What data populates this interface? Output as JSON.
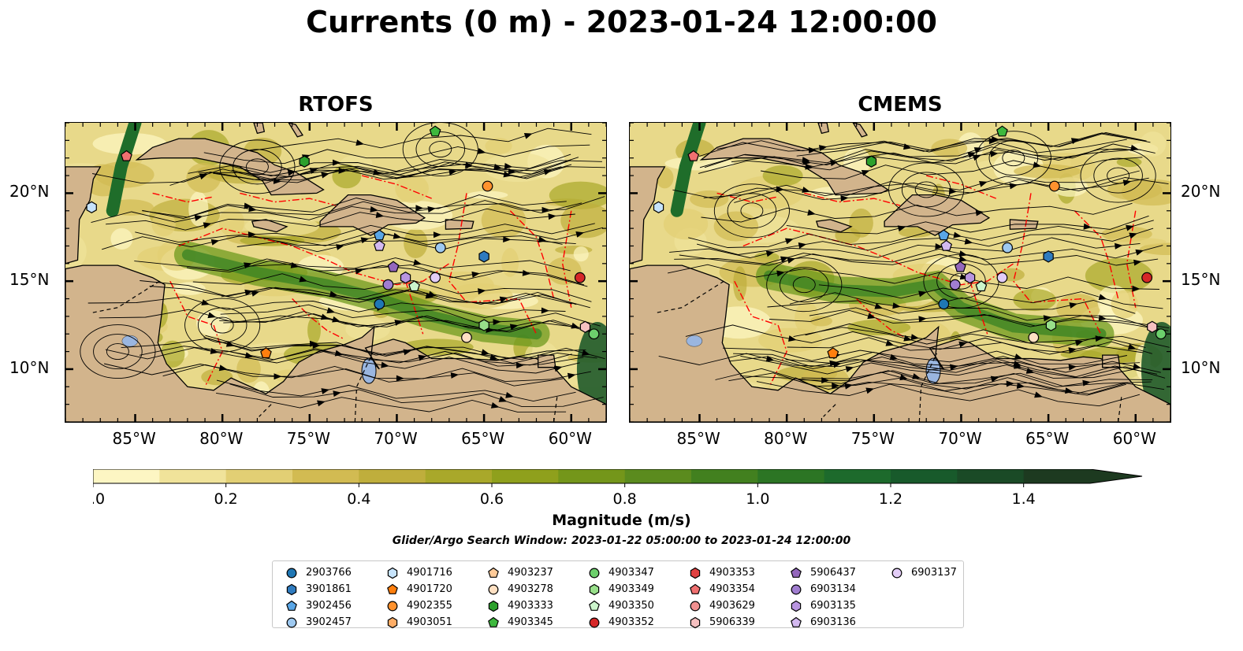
{
  "title": "Currents (0 m) - 2023-01-24 12:00:00",
  "panels": [
    {
      "id": "rtofs",
      "title": "RTOFS"
    },
    {
      "id": "cmems",
      "title": "CMEMS"
    }
  ],
  "map_extent": {
    "lon_min": -89,
    "lon_max": -58,
    "lat_min": 7,
    "lat_max": 24
  },
  "x_ticks": [
    "85°W",
    "80°W",
    "75°W",
    "70°W",
    "65°W",
    "60°W"
  ],
  "x_tick_values": [
    -85,
    -80,
    -75,
    -70,
    -65,
    -60
  ],
  "y_ticks": [
    "20°N",
    "15°N",
    "10°N"
  ],
  "y_tick_values": [
    20,
    15,
    10
  ],
  "colorbar": {
    "label": "Magnitude (m/s)",
    "min": 0.0,
    "max": 1.5,
    "extend": "max",
    "ticks": [
      "0.0",
      "0.2",
      "0.4",
      "0.6",
      "0.8",
      "1.0",
      "1.2",
      "1.4"
    ],
    "tick_values": [
      0.0,
      0.2,
      0.4,
      0.6,
      0.8,
      1.0,
      1.2,
      1.4
    ],
    "colors": [
      "#fdf6c3",
      "#f0e39a",
      "#e2cf74",
      "#d2bb52",
      "#bfae3c",
      "#a9a82a",
      "#8fa01c",
      "#74961a",
      "#5b8b1e",
      "#42801f",
      "#2c7524",
      "#1d6a2c",
      "#185a2b",
      "#1a4a26",
      "#1d3a20"
    ]
  },
  "search_window": "Glider/Argo Search Window: 2023-01-22 05:00:00 to 2023-01-24 12:00:00",
  "colors": {
    "land": "#d2b48c",
    "water_low": "#fdf6c3",
    "boundary": "#ff0000",
    "lake": "#9ab6e0"
  },
  "floats": [
    {
      "id": "2903766",
      "marker": "circle",
      "color": "#1f77b4",
      "lon": null,
      "lat": null
    },
    {
      "id": "3901861",
      "marker": "hexagon",
      "color": "#2f7bbf"
    },
    {
      "id": "3902456",
      "marker": "pentagon",
      "color": "#5aa6e6"
    },
    {
      "id": "3902457",
      "marker": "circle",
      "color": "#9ec9f0",
      "lon": -67.5,
      "lat": 16.9
    },
    {
      "id": "4901716",
      "marker": "hexagon",
      "color": "#c6e3fb",
      "lon": -87.5,
      "lat": 19.2
    },
    {
      "id": "4901720",
      "marker": "pentagon",
      "color": "#ff7f0e",
      "lon": -77.5,
      "lat": 10.9
    },
    {
      "id": "4902355",
      "marker": "circle",
      "color": "#ff922e",
      "lon": -64.8,
      "lat": 20.4
    },
    {
      "id": "4903051",
      "marker": "hexagon",
      "color": "#ffad66"
    },
    {
      "id": "4903237",
      "marker": "pentagon",
      "color": "#ffcb99"
    },
    {
      "id": "4903278",
      "marker": "circle",
      "color": "#ffe0c2",
      "lon": -66.0,
      "lat": 11.8
    },
    {
      "id": "4903333",
      "marker": "hexagon",
      "color": "#2ca02c",
      "lon": -75.3,
      "lat": 21.8
    },
    {
      "id": "4903345",
      "marker": "pentagon",
      "color": "#3db83d",
      "lon": -67.8,
      "lat": 23.5
    },
    {
      "id": "4903347",
      "marker": "circle",
      "color": "#6ccf6c",
      "lon": -58.7,
      "lat": 12.0
    },
    {
      "id": "4903349",
      "marker": "hexagon",
      "color": "#98df8a",
      "lon": -65.0,
      "lat": 12.5
    },
    {
      "id": "4903350",
      "marker": "pentagon",
      "color": "#ccf5cc",
      "lon": -69.0,
      "lat": 14.7
    },
    {
      "id": "4903352",
      "marker": "circle",
      "color": "#d62728",
      "lon": -59.5,
      "lat": 15.2
    },
    {
      "id": "4903353",
      "marker": "hexagon",
      "color": "#e04040"
    },
    {
      "id": "4903354",
      "marker": "pentagon",
      "color": "#f07070",
      "lon": -85.5,
      "lat": 22.1
    },
    {
      "id": "4903629",
      "marker": "circle",
      "color": "#f09090"
    },
    {
      "id": "5906339",
      "marker": "hexagon",
      "color": "#f5c0c0",
      "lon": -59.2,
      "lat": 12.4
    },
    {
      "id": "5906437",
      "marker": "pentagon",
      "color": "#9467bd",
      "lon": -70.2,
      "lat": 15.8
    },
    {
      "id": "6903134",
      "marker": "circle",
      "color": "#a07dd0",
      "lon": -70.5,
      "lat": 14.8
    },
    {
      "id": "6903135",
      "marker": "hexagon",
      "color": "#b995e0"
    },
    {
      "id": "6903136",
      "marker": "pentagon",
      "color": "#d3b9f0",
      "lon": -71.0,
      "lat": 17.0
    },
    {
      "id": "6903137",
      "marker": "circle",
      "color": "#e3cdf7",
      "lon": -67.8,
      "lat": 15.2
    }
  ],
  "extra_markers": [
    {
      "marker": "circle",
      "color": "#1f77b4",
      "lon": -71.0,
      "lat": 13.7
    },
    {
      "marker": "hexagon",
      "color": "#2f7bbf",
      "lon": -65.0,
      "lat": 16.4
    },
    {
      "marker": "pentagon",
      "color": "#5aa6e6",
      "lon": -71.0,
      "lat": 17.6
    },
    {
      "marker": "hexagon",
      "color": "#b995e0",
      "lon": -69.5,
      "lat": 15.2
    }
  ]
}
